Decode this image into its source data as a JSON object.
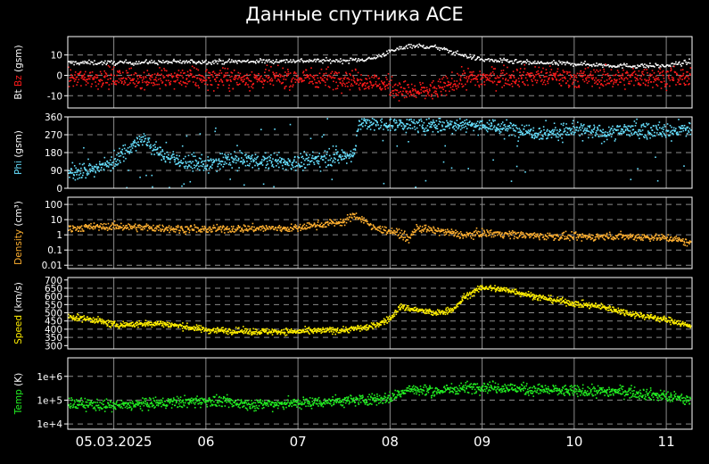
{
  "title": "Данные спутника ACE",
  "colors": {
    "background": "#000000",
    "bt": "#ffffff",
    "bz": "#ff1a1a",
    "phi": "#66e0ff",
    "density": "#ffb030",
    "speed": "#ffee00",
    "temp": "#22ee22"
  },
  "chart_data": [
    {
      "type": "scatter",
      "ylabel_parts": [
        {
          "text": "Bt",
          "color": "#ffffff"
        },
        {
          "text": " Bz",
          "color": "#ff1a1a"
        },
        {
          "text": " (gsm)",
          "color": "#ffffff"
        }
      ],
      "ylim": [
        -16,
        19
      ],
      "yticks": [
        {
          "v": 10,
          "label": "10"
        },
        {
          "v": 0,
          "label": "0"
        },
        {
          "v": -10,
          "label": "-10"
        }
      ],
      "hgrid": [
        10,
        0,
        -10
      ],
      "x_days": [
        4.5,
        11.28
      ],
      "series": [
        {
          "key": "bt",
          "color": "#ffffff",
          "points": [
            [
              4.5,
              6.5
            ],
            [
              5.0,
              6.5
            ],
            [
              5.5,
              6.8
            ],
            [
              6.0,
              7.0
            ],
            [
              6.5,
              7.2
            ],
            [
              7.0,
              7.5
            ],
            [
              7.5,
              7.5
            ],
            [
              7.8,
              8.5
            ],
            [
              8.0,
              12
            ],
            [
              8.2,
              15
            ],
            [
              8.5,
              14
            ],
            [
              8.8,
              10
            ],
            [
              9.0,
              8
            ],
            [
              9.5,
              6.5
            ],
            [
              10.0,
              6
            ],
            [
              10.5,
              5
            ],
            [
              11.0,
              5
            ],
            [
              11.25,
              7
            ]
          ],
          "spread": 0.8,
          "density": 700
        },
        {
          "key": "bz",
          "color": "#ff1a1a",
          "points": [
            [
              4.5,
              -1
            ],
            [
              5.0,
              -1
            ],
            [
              5.5,
              -1.5
            ],
            [
              6.0,
              -1
            ],
            [
              6.5,
              -1.5
            ],
            [
              7.0,
              -1
            ],
            [
              7.5,
              -1
            ],
            [
              7.8,
              -3
            ],
            [
              8.0,
              -5
            ],
            [
              8.2,
              -8
            ],
            [
              8.5,
              -7
            ],
            [
              8.8,
              -1
            ],
            [
              9.0,
              -1
            ],
            [
              9.5,
              0
            ],
            [
              10.0,
              -1
            ],
            [
              10.5,
              -1
            ],
            [
              11.0,
              -0.5
            ],
            [
              11.25,
              -1
            ]
          ],
          "spread": 3.5,
          "density": 1400
        }
      ]
    },
    {
      "type": "scatter",
      "ylabel_parts": [
        {
          "text": "Phi",
          "color": "#66e0ff"
        },
        {
          "text": " (gsm)",
          "color": "#ffffff"
        }
      ],
      "ylim": [
        0,
        360
      ],
      "yticks": [
        {
          "v": 360,
          "label": "360"
        },
        {
          "v": 270,
          "label": "270"
        },
        {
          "v": 180,
          "label": "180"
        },
        {
          "v": 90,
          "label": "90"
        },
        {
          "v": 0,
          "label": "0"
        }
      ],
      "hgrid": [
        270,
        180,
        90
      ],
      "x_days": [
        4.5,
        11.28
      ],
      "series": [
        {
          "key": "phi",
          "color": "#66e0ff",
          "points": [
            [
              4.5,
              80
            ],
            [
              4.8,
              100
            ],
            [
              5.0,
              140
            ],
            [
              5.2,
              220
            ],
            [
              5.3,
              250
            ],
            [
              5.5,
              180
            ],
            [
              5.7,
              140
            ],
            [
              6.0,
              120
            ],
            [
              6.3,
              150
            ],
            [
              6.6,
              140
            ],
            [
              7.0,
              130
            ],
            [
              7.3,
              160
            ],
            [
              7.6,
              170
            ],
            [
              7.65,
              330
            ],
            [
              8.0,
              330
            ],
            [
              8.5,
              320
            ],
            [
              8.8,
              330
            ],
            [
              9.0,
              320
            ],
            [
              9.4,
              300
            ],
            [
              9.7,
              280
            ],
            [
              10.0,
              300
            ],
            [
              10.3,
              280
            ],
            [
              10.6,
              300
            ],
            [
              11.0,
              290
            ],
            [
              11.25,
              300
            ]
          ],
          "spread": 28,
          "density": 1500
        }
      ]
    },
    {
      "type": "scatter",
      "ylabel_parts": [
        {
          "text": "Density",
          "color": "#ffb030"
        },
        {
          "text": " (cm³)",
          "color": "#ffffff"
        }
      ],
      "log": true,
      "ylim": [
        0.006,
        300
      ],
      "yticks": [
        {
          "v": 100,
          "label": "100"
        },
        {
          "v": 10,
          "label": "10"
        },
        {
          "v": 1,
          "label": "1"
        },
        {
          "v": 0.1,
          "label": "0.1"
        },
        {
          "v": 0.01,
          "label": "0.01"
        }
      ],
      "hgrid": [
        100,
        10,
        1,
        0.1,
        0.01
      ],
      "x_days": [
        4.5,
        11.28
      ],
      "series": [
        {
          "key": "density",
          "color": "#ffb030",
          "points": [
            [
              4.5,
              3
            ],
            [
              5.0,
              4
            ],
            [
              5.5,
              3
            ],
            [
              6.0,
              2.5
            ],
            [
              6.5,
              3
            ],
            [
              7.0,
              3
            ],
            [
              7.5,
              8
            ],
            [
              7.6,
              20
            ],
            [
              7.8,
              3
            ],
            [
              8.0,
              2
            ],
            [
              8.2,
              0.5
            ],
            [
              8.3,
              3
            ],
            [
              8.5,
              2
            ],
            [
              8.8,
              1
            ],
            [
              9.0,
              1.5
            ],
            [
              9.5,
              1
            ],
            [
              10.0,
              0.8
            ],
            [
              10.5,
              0.9
            ],
            [
              11.0,
              0.7
            ],
            [
              11.25,
              0.3
            ]
          ],
          "spread_log": 0.18,
          "density": 1200
        }
      ]
    },
    {
      "type": "scatter",
      "ylabel_parts": [
        {
          "text": "Speed",
          "color": "#ffee00"
        },
        {
          "text": " (km/s)",
          "color": "#ffffff"
        }
      ],
      "ylim": [
        280,
        715
      ],
      "yticks": [
        {
          "v": 700,
          "label": "700"
        },
        {
          "v": 650,
          "label": "650"
        },
        {
          "v": 600,
          "label": "600"
        },
        {
          "v": 550,
          "label": "550"
        },
        {
          "v": 500,
          "label": "500"
        },
        {
          "v": 450,
          "label": "450"
        },
        {
          "v": 400,
          "label": "400"
        },
        {
          "v": 350,
          "label": "350"
        },
        {
          "v": 300,
          "label": "300"
        }
      ],
      "hgrid": [
        650,
        600,
        550,
        500,
        450,
        400,
        350
      ],
      "x_days": [
        4.5,
        11.28
      ],
      "series": [
        {
          "key": "speed",
          "color": "#ffee00",
          "points": [
            [
              4.5,
              480
            ],
            [
              4.8,
              460
            ],
            [
              5.0,
              430
            ],
            [
              5.5,
              440
            ],
            [
              6.0,
              400
            ],
            [
              6.5,
              390
            ],
            [
              7.0,
              390
            ],
            [
              7.5,
              400
            ],
            [
              7.8,
              420
            ],
            [
              8.0,
              470
            ],
            [
              8.1,
              540
            ],
            [
              8.3,
              520
            ],
            [
              8.5,
              500
            ],
            [
              8.7,
              530
            ],
            [
              8.8,
              600
            ],
            [
              9.0,
              660
            ],
            [
              9.3,
              640
            ],
            [
              9.6,
              600
            ],
            [
              10.0,
              560
            ],
            [
              10.3,
              540
            ],
            [
              10.6,
              500
            ],
            [
              10.9,
              470
            ],
            [
              11.1,
              450
            ],
            [
              11.25,
              420
            ]
          ],
          "spread": 14,
          "density": 1500
        }
      ]
    },
    {
      "type": "scatter",
      "ylabel_parts": [
        {
          "text": "Temp",
          "color": "#22ee22"
        },
        {
          "text": " (K)",
          "color": "#ffffff"
        }
      ],
      "log": true,
      "ylim": [
        6000,
        6000000
      ],
      "yticks": [
        {
          "v": 1000000,
          "label": "1e+6"
        },
        {
          "v": 100000,
          "label": "1e+5"
        },
        {
          "v": 10000,
          "label": "1e+4"
        }
      ],
      "hgrid": [
        1000000,
        100000,
        10000
      ],
      "x_days": [
        4.5,
        11.28
      ],
      "series": [
        {
          "key": "temp",
          "color": "#22ee22",
          "points": [
            [
              4.5,
              80000
            ],
            [
              5.0,
              60000
            ],
            [
              5.5,
              80000
            ],
            [
              6.0,
              100000
            ],
            [
              6.5,
              70000
            ],
            [
              7.0,
              80000
            ],
            [
              7.5,
              100000
            ],
            [
              8.0,
              130000
            ],
            [
              8.2,
              300000
            ],
            [
              8.5,
              250000
            ],
            [
              8.8,
              350000
            ],
            [
              9.0,
              400000
            ],
            [
              9.5,
              300000
            ],
            [
              10.0,
              250000
            ],
            [
              10.5,
              250000
            ],
            [
              11.0,
              150000
            ],
            [
              11.25,
              100000
            ]
          ],
          "spread_log": 0.17,
          "density": 1500
        }
      ]
    }
  ],
  "x_axis": {
    "range_days": [
      4.5,
      11.28
    ],
    "ticks": [
      {
        "d": 5,
        "label": "05.03.2025"
      },
      {
        "d": 6,
        "label": "06"
      },
      {
        "d": 7,
        "label": "07"
      },
      {
        "d": 8,
        "label": "08"
      },
      {
        "d": 9,
        "label": "09"
      },
      {
        "d": 10,
        "label": "10"
      },
      {
        "d": 11,
        "label": "11"
      }
    ]
  }
}
